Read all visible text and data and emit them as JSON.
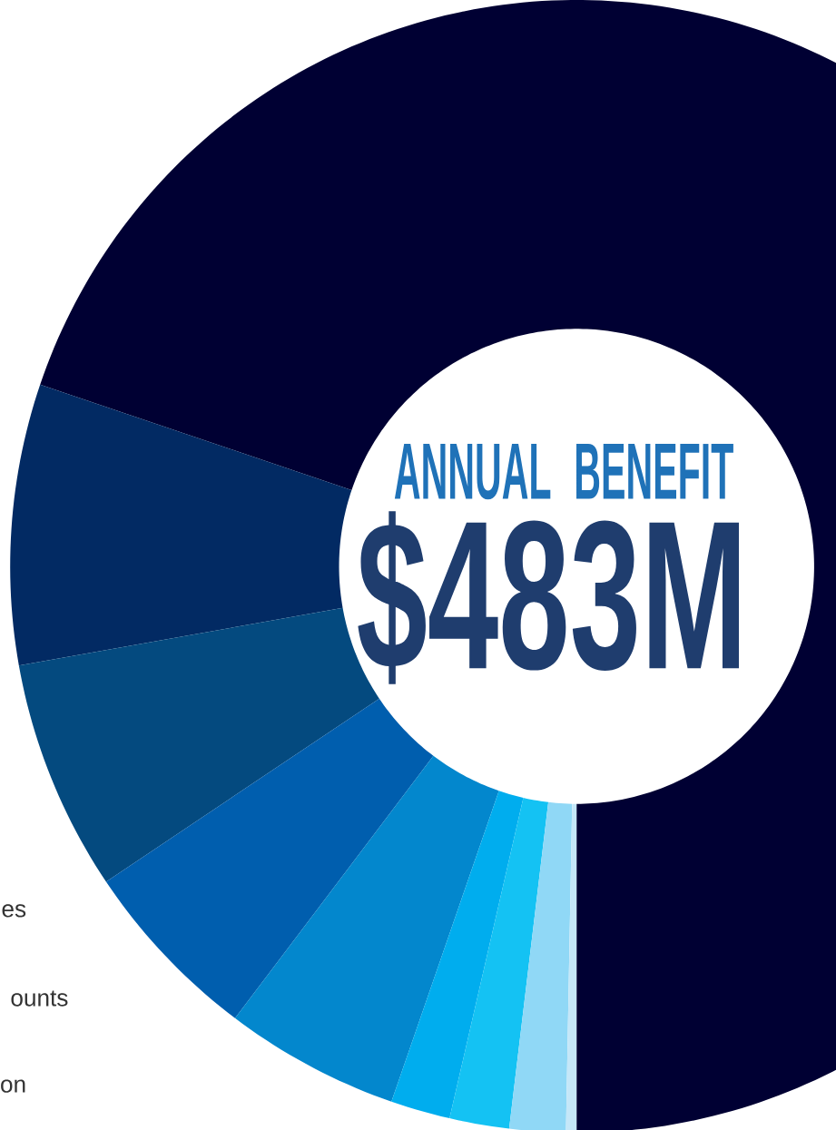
{
  "chart_data": {
    "type": "donut",
    "title": "ANNUAL BENEFIT",
    "subtitle": "$483M",
    "categories": [
      null,
      null,
      null,
      null,
      null,
      null,
      null,
      null,
      null
    ],
    "values": [
      69.8,
      8.0,
      6.6,
      5.3,
      5.0,
      1.7,
      1.7,
      1.6,
      0.3
    ],
    "colors": [
      "#000033",
      "#022a63",
      "#044a7f",
      "#005eae",
      "#0387cd",
      "#00adee",
      "#14c2f3",
      "#90d8f6",
      "#c5e7f8"
    ],
    "annotations": [
      "es",
      "ounts",
      "on"
    ]
  }
}
